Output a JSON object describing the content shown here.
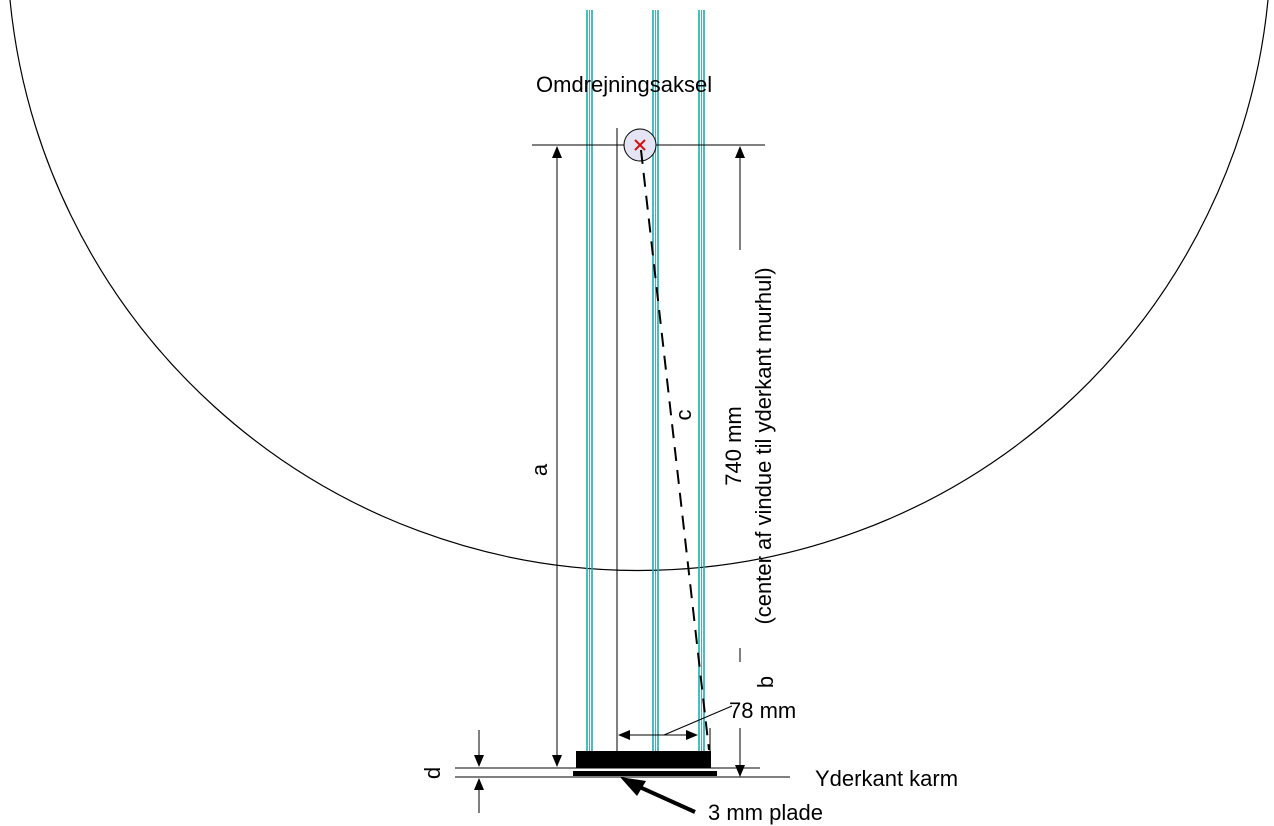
{
  "labels": {
    "axis": "Omdrejningsaksel",
    "a": "a",
    "b": "b",
    "c": "c",
    "d": "d",
    "dim_740": "740 mm",
    "dim_740_note": "(center af vindue til yderkant murhul)",
    "dim_78": "78 mm",
    "outer_frame": "Yderkant karm",
    "plate": "3 mm plade"
  },
  "colors": {
    "line": "#000000",
    "glass": "#14b1b8",
    "pivot_fill": "#e4e4f4",
    "pivot_cross": "#d01010"
  }
}
